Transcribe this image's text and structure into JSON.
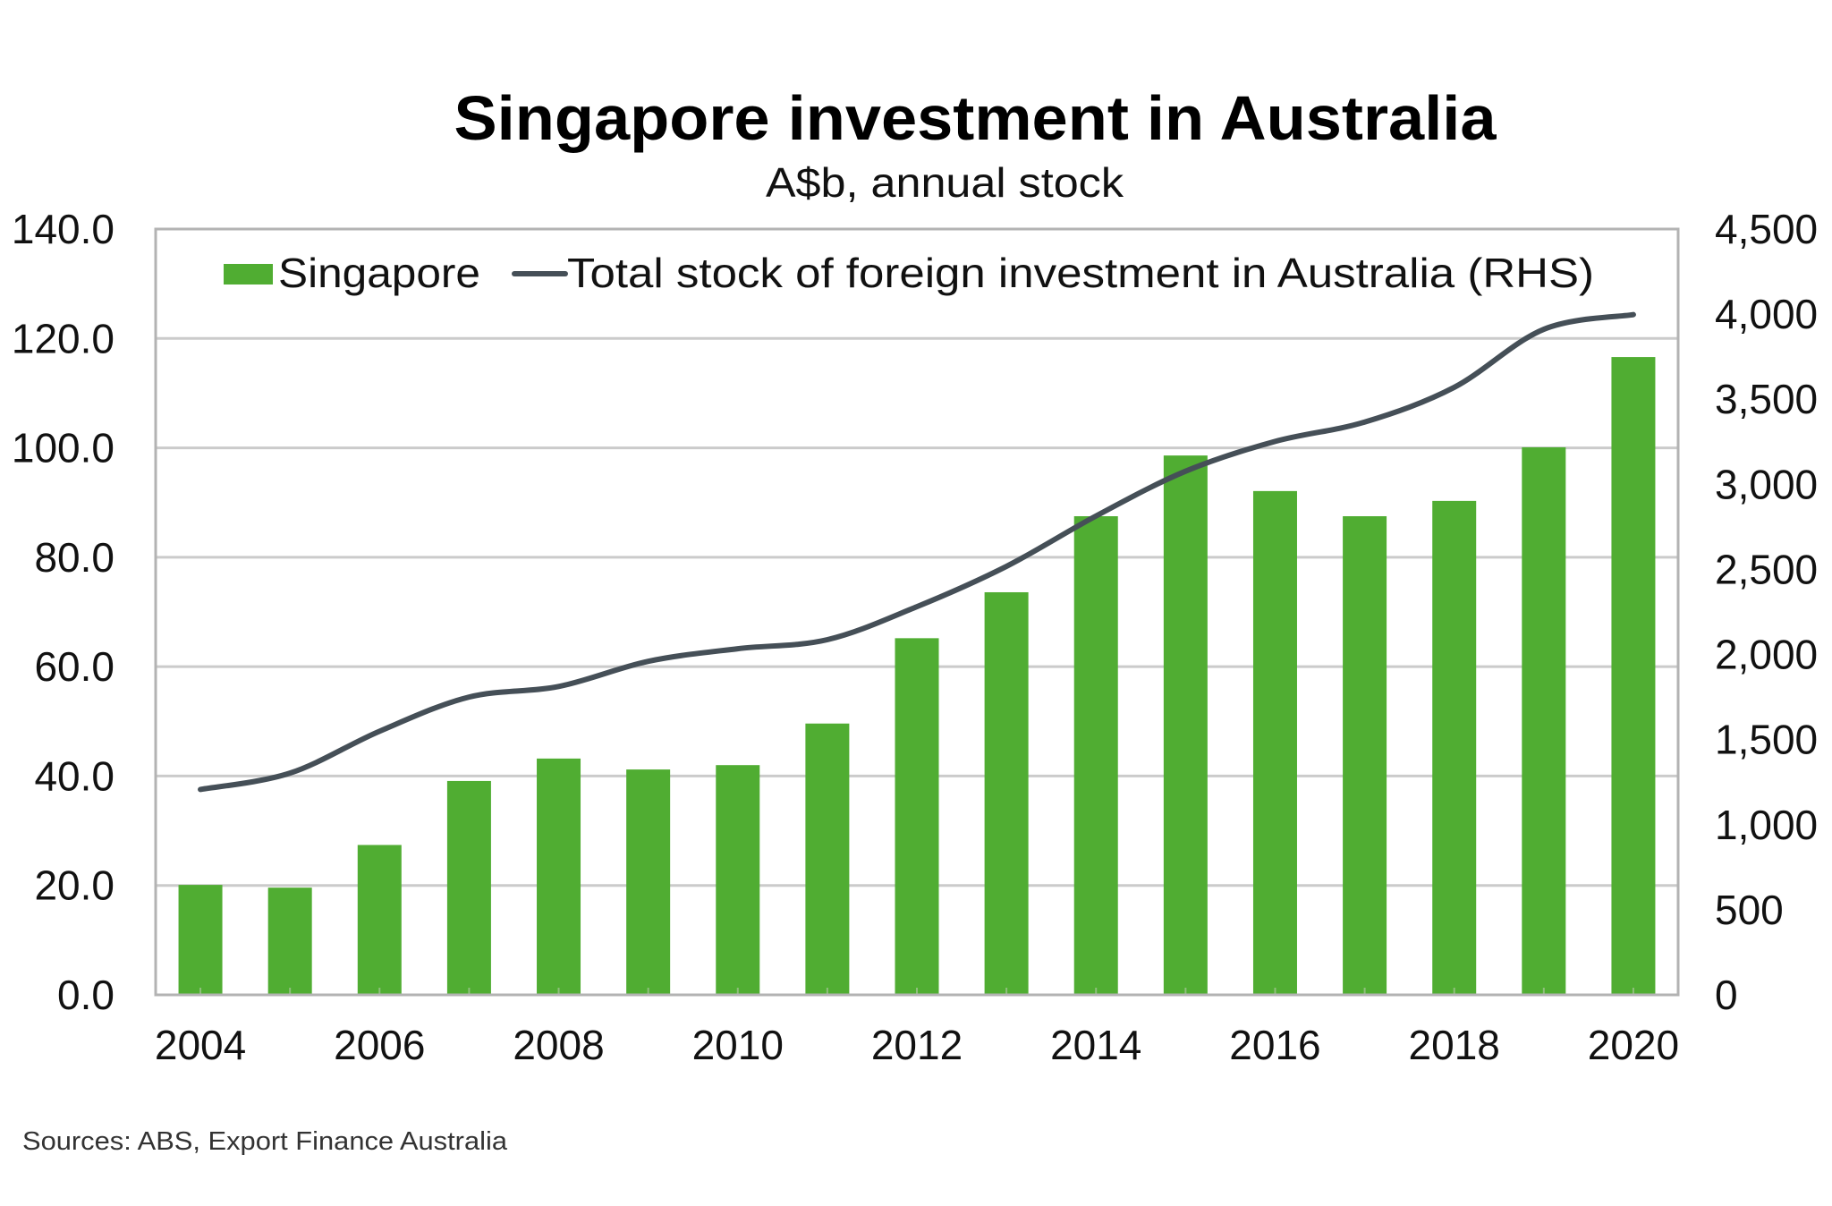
{
  "chart_data": {
    "type": "bar+line",
    "title": "Singapore investment in Australia",
    "subtitle": "A$b, annual stock",
    "categories": [
      "2004",
      "2005",
      "2006",
      "2007",
      "2008",
      "2009",
      "2010",
      "2011",
      "2012",
      "2013",
      "2014",
      "2015",
      "2016",
      "2017",
      "2018",
      "2019",
      "2020"
    ],
    "x_tick_labels": [
      "2004",
      "2006",
      "2008",
      "2010",
      "2012",
      "2014",
      "2016",
      "2018",
      "2020"
    ],
    "series": [
      {
        "name": "Singapore",
        "type": "bar",
        "axis": "left",
        "color": "#50ad32",
        "values": [
          20.1,
          19.6,
          27.4,
          39.1,
          43.2,
          41.2,
          42.0,
          49.6,
          65.2,
          73.6,
          87.5,
          98.6,
          92.1,
          87.5,
          90.3,
          100.1,
          116.6
        ]
      },
      {
        "name": "Total stock of foreign investment in Australia (RHS)",
        "type": "line",
        "axis": "right",
        "color": "#454f57",
        "values": [
          1207,
          1303,
          1549,
          1750,
          1812,
          1960,
          2034,
          2087,
          2281,
          2518,
          2814,
          3077,
          3252,
          3366,
          3570,
          3911,
          3997
        ]
      }
    ],
    "left_axis": {
      "label": "",
      "ylim": [
        0,
        140
      ],
      "ticks": [
        0,
        20,
        40,
        60,
        80,
        100,
        120,
        140
      ],
      "tick_labels": [
        "0.0",
        "20.0",
        "40.0",
        "60.0",
        "80.0",
        "100.0",
        "120.0",
        "140.0"
      ]
    },
    "right_axis": {
      "label": "",
      "ylim": [
        0,
        4500
      ],
      "ticks": [
        0,
        500,
        1000,
        1500,
        2000,
        2500,
        3000,
        3500,
        4000,
        4500
      ],
      "tick_labels": [
        "0",
        "500",
        "1,000",
        "1,500",
        "2,000",
        "2,500",
        "3,000",
        "3,500",
        "4,000",
        "4,500"
      ]
    },
    "xlabel": "",
    "grid": true,
    "legend_position": "top-inside",
    "source": "Sources: ABS, Export Finance Australia"
  },
  "style": {
    "grid_color": "#cbcbcb",
    "border_color": "#b3b3b3",
    "bar_color": "#50ad32",
    "line_color": "#454f57"
  }
}
